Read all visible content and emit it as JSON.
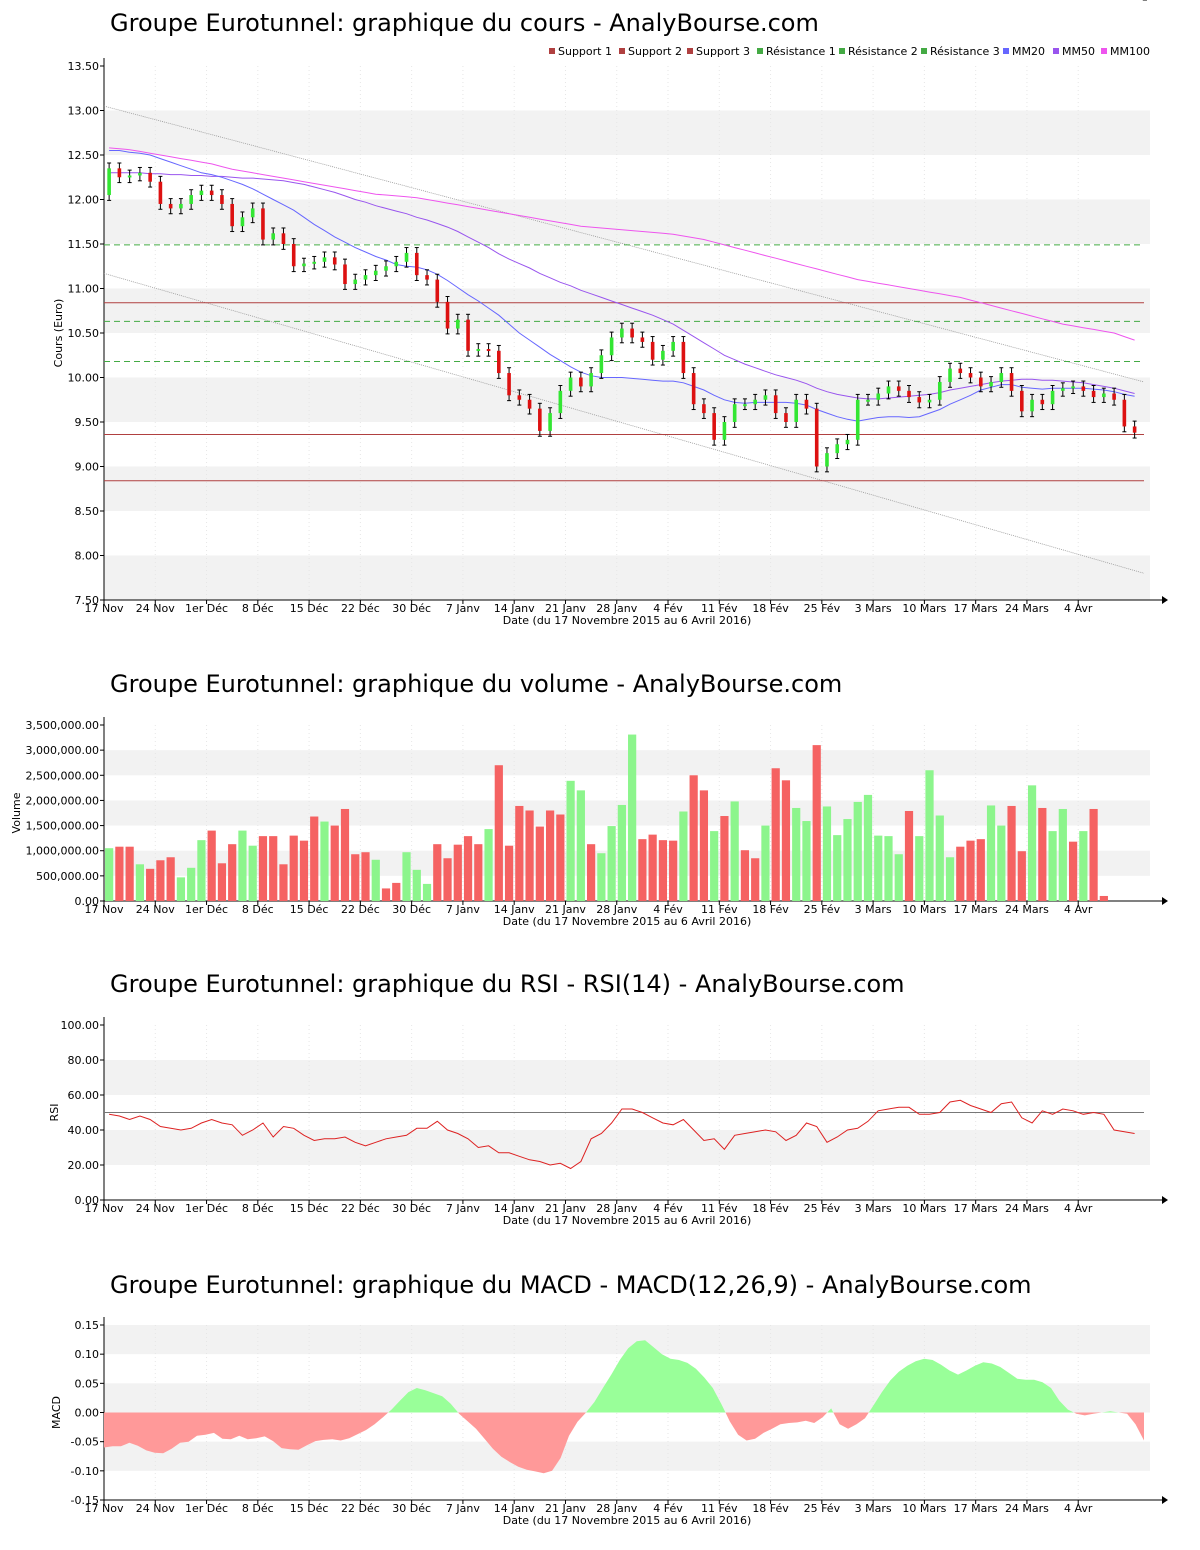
{
  "colors": {
    "up": "#33e633",
    "down": "#dd1111",
    "vol_up": "#8cf58c",
    "vol_down": "#f56262",
    "mm20": "#6666ff",
    "mm50": "#9955ee",
    "mm100": "#ee55ee",
    "support": "#b04040",
    "resistance": "#44aa44",
    "rsi": "#dd2222",
    "neutral": "#777777",
    "macd_pos": "#99ff99",
    "macd_neg": "#ff9999",
    "band": "#f2f2f2"
  },
  "x_axis": {
    "labels": [
      "17 Nov",
      "24 Nov",
      "1er Déc",
      "8 Déc",
      "15 Déc",
      "22 Déc",
      "30 Déc",
      "7 Janv",
      "14 Janv",
      "21 Janv",
      "28 Janv",
      "4 Fév",
      "11 Fév",
      "18 Fév",
      "25 Fév",
      "3 Mars",
      "10 Mars",
      "17 Mars",
      "24 Mars",
      "4 Avr"
    ],
    "label_index": [
      0,
      5,
      10,
      15,
      20,
      25,
      30,
      35,
      40,
      45,
      50,
      55,
      60,
      65,
      70,
      75,
      80,
      85,
      90,
      95
    ],
    "caption": "Date (du 17 Novembre 2015 au 6 Avril 2016)"
  },
  "charts": {
    "price": {
      "title": "Groupe Eurotunnel: graphique du cours - AnalyBourse.com",
      "ylabel": "Cours (Euro)",
      "legend": [
        "Support 1",
        "Support 2",
        "Support 3",
        "Résistance 1",
        "Résistance 2",
        "Résistance 3",
        "MM20",
        "MM50",
        "MM100"
      ]
    },
    "volume": {
      "title": "Groupe Eurotunnel: graphique du volume - AnalyBourse.com",
      "ylabel": "Volume"
    },
    "rsi": {
      "title": "Groupe Eurotunnel: graphique du RSI - RSI(14) - AnalyBourse.com",
      "ylabel": "RSI"
    },
    "macd": {
      "title": "Groupe Eurotunnel: graphique du MACD - MACD(12,26,9) - AnalyBourse.com",
      "ylabel": "MACD"
    }
  },
  "chart_data": [
    {
      "type": "candlestick",
      "title": "Groupe Eurotunnel: graphique du cours - AnalyBourse.com",
      "ylabel": "Cours (Euro)",
      "xlabel": "Date (du 17 Novembre 2015 au 6 Avril 2016)",
      "ylim": [
        7.5,
        13.5
      ],
      "yticks": [
        "7.50",
        "8.00",
        "8.50",
        "9.00",
        "9.50",
        "10.00",
        "10.50",
        "11.00",
        "11.50",
        "12.00",
        "12.50",
        "13.00",
        "13.50"
      ],
      "close": [
        12.35,
        12.25,
        12.27,
        12.3,
        12.2,
        11.95,
        11.9,
        11.95,
        12.05,
        12.1,
        12.05,
        11.95,
        11.7,
        11.8,
        11.9,
        11.55,
        11.62,
        11.5,
        11.25,
        11.28,
        11.3,
        11.35,
        11.27,
        11.05,
        11.1,
        11.15,
        11.2,
        11.25,
        11.3,
        11.4,
        11.15,
        11.1,
        10.85,
        10.55,
        10.65,
        10.3,
        10.32,
        10.3,
        10.05,
        9.8,
        9.75,
        9.65,
        9.4,
        9.6,
        9.85,
        10.0,
        9.9,
        10.05,
        10.25,
        10.45,
        10.55,
        10.45,
        10.4,
        10.2,
        10.3,
        10.4,
        10.05,
        9.7,
        9.6,
        9.3,
        9.5,
        9.7,
        9.7,
        9.75,
        9.8,
        9.6,
        9.5,
        9.75,
        9.65,
        9.0,
        9.15,
        9.25,
        9.3,
        9.75,
        9.75,
        9.82,
        9.9,
        9.85,
        9.78,
        9.72,
        9.75,
        9.95,
        10.1,
        10.05,
        10.0,
        9.9,
        9.95,
        10.05,
        9.85,
        9.62,
        9.75,
        9.7,
        9.85,
        9.88,
        9.9,
        9.85,
        9.78,
        9.82,
        9.75,
        9.45,
        9.38
      ],
      "ma20": [
        12.55,
        12.55,
        12.53,
        12.52,
        12.5,
        12.46,
        12.42,
        12.38,
        12.34,
        12.3,
        12.28,
        12.25,
        12.21,
        12.17,
        12.12,
        12.06,
        12.0,
        11.94,
        11.88,
        11.8,
        11.72,
        11.65,
        11.58,
        11.52,
        11.46,
        11.41,
        11.36,
        11.32,
        11.27,
        11.25,
        11.24,
        11.21,
        11.16,
        11.09,
        11.01,
        10.93,
        10.86,
        10.78,
        10.7,
        10.6,
        10.5,
        10.42,
        10.34,
        10.26,
        10.19,
        10.12,
        10.06,
        10.02,
        10.0,
        10.0,
        10.0,
        9.99,
        9.98,
        9.97,
        9.96,
        9.96,
        9.94,
        9.9,
        9.86,
        9.8,
        9.75,
        9.72,
        9.71,
        9.72,
        9.72,
        9.72,
        9.72,
        9.71,
        9.69,
        9.64,
        9.6,
        9.56,
        9.53,
        9.51,
        9.53,
        9.55,
        9.56,
        9.56,
        9.55,
        9.56,
        9.6,
        9.64,
        9.7,
        9.75,
        9.8,
        9.86,
        9.89,
        9.92,
        9.92,
        9.89,
        9.88,
        9.87,
        9.88,
        9.88,
        9.88,
        9.88,
        9.87,
        9.86,
        9.84,
        9.81,
        9.79
      ],
      "ma50": [
        12.3,
        12.3,
        12.3,
        12.3,
        12.29,
        12.29,
        12.28,
        12.28,
        12.27,
        12.27,
        12.26,
        12.26,
        12.25,
        12.24,
        12.24,
        12.23,
        12.22,
        12.21,
        12.19,
        12.17,
        12.14,
        12.11,
        12.08,
        12.04,
        12.0,
        11.97,
        11.93,
        11.9,
        11.87,
        11.84,
        11.8,
        11.77,
        11.73,
        11.69,
        11.64,
        11.58,
        11.52,
        11.46,
        11.39,
        11.33,
        11.28,
        11.23,
        11.17,
        11.12,
        11.07,
        11.03,
        10.98,
        10.94,
        10.9,
        10.86,
        10.82,
        10.78,
        10.74,
        10.7,
        10.65,
        10.6,
        10.53,
        10.46,
        10.39,
        10.32,
        10.25,
        10.2,
        10.15,
        10.11,
        10.07,
        10.03,
        10.0,
        9.97,
        9.93,
        9.88,
        9.84,
        9.81,
        9.79,
        9.77,
        9.76,
        9.76,
        9.77,
        9.78,
        9.79,
        9.8,
        9.81,
        9.83,
        9.86,
        9.88,
        9.9,
        9.92,
        9.94,
        9.96,
        9.97,
        9.98,
        9.98,
        9.97,
        9.97,
        9.96,
        9.95,
        9.94,
        9.92,
        9.9,
        9.88,
        9.85,
        9.82
      ],
      "ma100": [
        12.58,
        12.57,
        12.56,
        12.54,
        12.52,
        12.5,
        12.48,
        12.46,
        12.44,
        12.42,
        12.4,
        12.37,
        12.34,
        12.32,
        12.3,
        12.28,
        12.26,
        12.24,
        12.22,
        12.2,
        12.18,
        12.16,
        12.14,
        12.12,
        12.1,
        12.08,
        12.06,
        12.05,
        12.04,
        12.03,
        12.02,
        12.0,
        11.98,
        11.96,
        11.94,
        11.92,
        11.9,
        11.88,
        11.86,
        11.84,
        11.82,
        11.8,
        11.78,
        11.76,
        11.74,
        11.72,
        11.7,
        11.69,
        11.68,
        11.67,
        11.66,
        11.65,
        11.64,
        11.63,
        11.62,
        11.61,
        11.59,
        11.57,
        11.55,
        11.52,
        11.49,
        11.46,
        11.43,
        11.4,
        11.37,
        11.34,
        11.31,
        11.28,
        11.25,
        11.22,
        11.19,
        11.16,
        11.13,
        11.1,
        11.08,
        11.06,
        11.04,
        11.02,
        11.0,
        10.98,
        10.96,
        10.94,
        10.92,
        10.9,
        10.87,
        10.84,
        10.81,
        10.78,
        10.75,
        10.72,
        10.69,
        10.66,
        10.63,
        10.6,
        10.58,
        10.56,
        10.54,
        10.52,
        10.5,
        10.46,
        10.42
      ],
      "support": {
        "Support 1": 10.84,
        "Support 2": 9.36,
        "Support 3": 8.84
      },
      "resistance": {
        "Résistance 1": 11.49,
        "Résistance 2": 10.63,
        "Résistance 3": 10.18
      },
      "channel": {
        "upper": [
          13.05,
          9.95
        ],
        "lower": [
          11.17,
          7.8
        ]
      }
    },
    {
      "type": "bar",
      "title": "Groupe Eurotunnel: graphique du volume - AnalyBourse.com",
      "ylabel": "Volume",
      "ylim": [
        0,
        3500000
      ],
      "yticks": [
        "0.00",
        "500,000.00",
        "1,000,000.00",
        "1,500,000.00",
        "2,000,000.00",
        "2,500,000.00",
        "3,000,000.00",
        "3,500,000.00"
      ],
      "values": [
        1050000,
        1080000,
        1080000,
        730000,
        640000,
        810000,
        870000,
        470000,
        660000,
        1210000,
        1400000,
        750000,
        1130000,
        1400000,
        1100000,
        1290000,
        1290000,
        730000,
        1300000,
        1200000,
        1680000,
        1580000,
        1500000,
        1830000,
        930000,
        970000,
        820000,
        250000,
        360000,
        970000,
        620000,
        340000,
        1130000,
        850000,
        1120000,
        1290000,
        1130000,
        1430000,
        2700000,
        1100000,
        1890000,
        1800000,
        1480000,
        1800000,
        1720000,
        2390000,
        2200000,
        1130000,
        950000,
        1490000,
        1910000,
        3310000,
        1230000,
        1320000,
        1210000,
        1200000,
        1780000,
        2500000,
        2200000,
        1390000,
        1690000,
        1980000,
        1010000,
        850000,
        1500000,
        2640000,
        2400000,
        1850000,
        1590000,
        3100000,
        1880000,
        1310000,
        1630000,
        1970000,
        2110000,
        1300000,
        1290000,
        930000,
        1790000,
        1290000,
        2600000,
        1700000,
        870000,
        1080000,
        1200000,
        1230000,
        1900000,
        1500000,
        1890000,
        990000,
        2300000,
        1850000,
        1390000,
        1830000,
        1180000,
        1390000,
        1830000,
        100000
      ],
      "direction": [
        1,
        -1,
        -1,
        1,
        -1,
        -1,
        -1,
        1,
        1,
        1,
        -1,
        -1,
        -1,
        1,
        1,
        -1,
        -1,
        -1,
        -1,
        -1,
        -1,
        1,
        -1,
        -1,
        -1,
        -1,
        1,
        -1,
        -1,
        1,
        1,
        1,
        -1,
        -1,
        -1,
        -1,
        -1,
        1,
        -1,
        -1,
        -1,
        -1,
        -1,
        -1,
        -1,
        1,
        1,
        -1,
        1,
        1,
        1,
        1,
        -1,
        -1,
        -1,
        -1,
        1,
        -1,
        -1,
        1,
        -1,
        1,
        -1,
        -1,
        1,
        -1,
        -1,
        1,
        1,
        -1,
        1,
        1,
        1,
        1,
        1,
        1,
        1,
        1,
        -1,
        1,
        1,
        1,
        1,
        -1,
        -1,
        -1,
        1,
        1,
        -1,
        -1,
        1,
        -1,
        1,
        1,
        -1,
        1,
        -1,
        -1
      ]
    },
    {
      "type": "line",
      "title": "Groupe Eurotunnel: graphique du RSI - RSI(14) - AnalyBourse.com",
      "ylabel": "RSI",
      "ylim": [
        0,
        100
      ],
      "yticks": [
        "0.00",
        "20.00",
        "40.00",
        "60.00",
        "80.00",
        "100.00"
      ],
      "reference": 50,
      "values": [
        49,
        48,
        46,
        48,
        46,
        42,
        41,
        40,
        41,
        44,
        46,
        44,
        43,
        37,
        40,
        44,
        36,
        42,
        41,
        37,
        34,
        35,
        35,
        36,
        33,
        31,
        33,
        35,
        36,
        37,
        41,
        41,
        45,
        40,
        38,
        35,
        30,
        31,
        27,
        27,
        25,
        23,
        22,
        20,
        21,
        18,
        22,
        35,
        38,
        44,
        52,
        52,
        50,
        47,
        44,
        43,
        46,
        40,
        34,
        35,
        29,
        37,
        38,
        39,
        40,
        39,
        34,
        37,
        44,
        42,
        33,
        36,
        40,
        41,
        45,
        51,
        52,
        53,
        53,
        49,
        49,
        50,
        56,
        57,
        54,
        52,
        50,
        55,
        56,
        47,
        44,
        51,
        49,
        52,
        51,
        49,
        50,
        49,
        40,
        39,
        38
      ],
      "shaded_bands": [
        [
          20,
          40
        ],
        [
          60,
          80
        ]
      ]
    },
    {
      "type": "area",
      "title": "Groupe Eurotunnel: graphique du MACD - MACD(12,26,9) - AnalyBourse.com",
      "ylabel": "MACD",
      "ylim": [
        -0.15,
        0.15
      ],
      "yticks": [
        "-0.15",
        "-0.10",
        "-0.05",
        "0.00",
        "0.05",
        "0.10",
        "0.15"
      ],
      "values": [
        -0.06,
        -0.058,
        -0.058,
        -0.052,
        -0.057,
        -0.065,
        -0.069,
        -0.07,
        -0.062,
        -0.052,
        -0.05,
        -0.04,
        -0.038,
        -0.035,
        -0.045,
        -0.046,
        -0.04,
        -0.046,
        -0.044,
        -0.041,
        -0.049,
        -0.061,
        -0.063,
        -0.064,
        -0.056,
        -0.049,
        -0.047,
        -0.046,
        -0.048,
        -0.044,
        -0.037,
        -0.03,
        -0.02,
        -0.008,
        0.005,
        0.02,
        0.035,
        0.042,
        0.038,
        0.033,
        0.028,
        0.015,
        -0.002,
        -0.015,
        -0.028,
        -0.045,
        -0.062,
        -0.076,
        -0.085,
        -0.093,
        -0.098,
        -0.101,
        -0.104,
        -0.1,
        -0.078,
        -0.04,
        -0.016,
        0.0,
        0.018,
        0.042,
        0.065,
        0.09,
        0.11,
        0.122,
        0.124,
        0.112,
        0.1,
        0.092,
        0.09,
        0.085,
        0.075,
        0.06,
        0.042,
        0.015,
        -0.015,
        -0.038,
        -0.048,
        -0.045,
        -0.035,
        -0.028,
        -0.02,
        -0.018,
        -0.017,
        -0.014,
        -0.018,
        -0.008,
        0.007,
        -0.02,
        -0.028,
        -0.02,
        -0.01,
        0.012,
        0.035,
        0.055,
        0.07,
        0.08,
        0.088,
        0.092,
        0.09,
        0.082,
        0.072,
        0.065,
        0.072,
        0.08,
        0.086,
        0.084,
        0.078,
        0.068,
        0.058,
        0.056,
        0.056,
        0.052,
        0.042,
        0.02,
        0.005,
        -0.002,
        -0.005,
        -0.002,
        0.0,
        0.002,
        0.0,
        -0.002,
        -0.02,
        -0.048
      ]
    }
  ]
}
